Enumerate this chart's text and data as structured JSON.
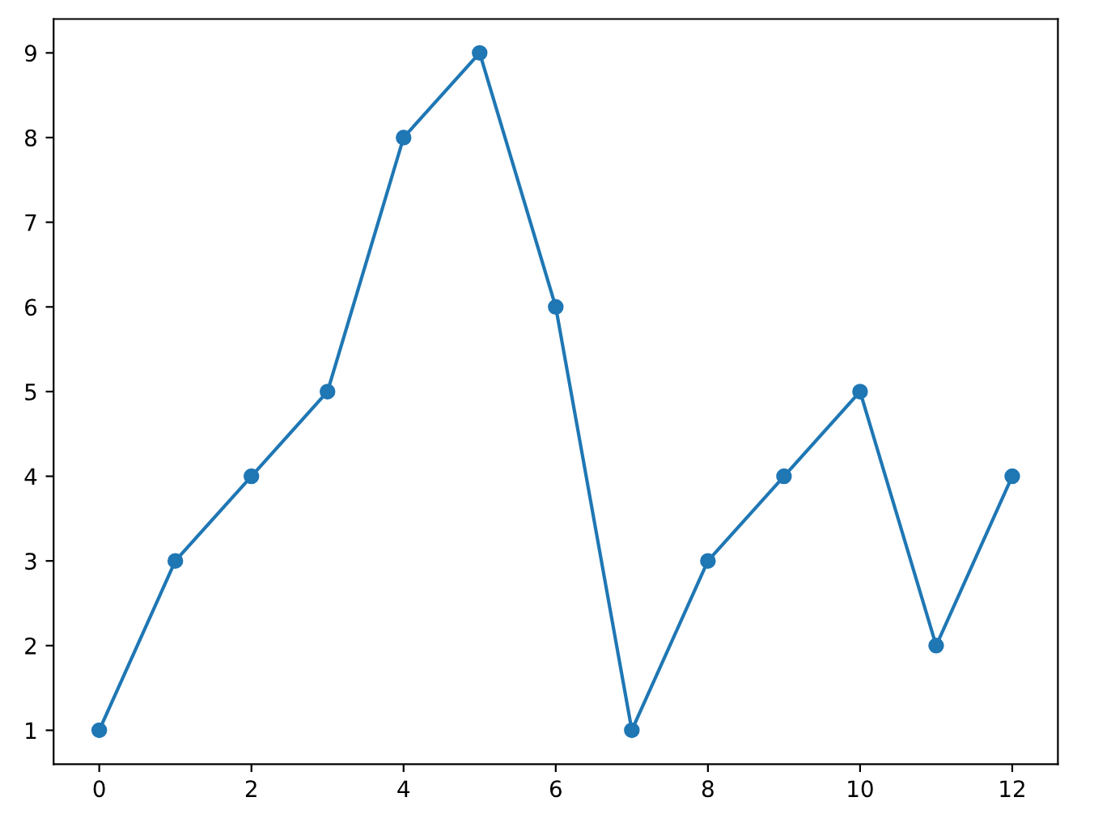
{
  "chart_data": {
    "type": "line",
    "x": [
      0,
      1,
      2,
      3,
      4,
      5,
      6,
      7,
      8,
      9,
      10,
      11,
      12
    ],
    "series": [
      {
        "color": "#1f77b4",
        "values": [
          1,
          3,
          4,
          5,
          8,
          9,
          6,
          1,
          3,
          4,
          5,
          2,
          4
        ]
      }
    ],
    "xlim": [
      -0.6,
      12.6
    ],
    "xticks": [
      0,
      2,
      4,
      6,
      8,
      10,
      12
    ],
    "ylim": [
      0.6,
      9.4
    ],
    "yticks": [
      1,
      2,
      3,
      4,
      5,
      6,
      7,
      8,
      9
    ],
    "marker": "circle",
    "line_style": "solid",
    "grid": false,
    "legend": false
  }
}
